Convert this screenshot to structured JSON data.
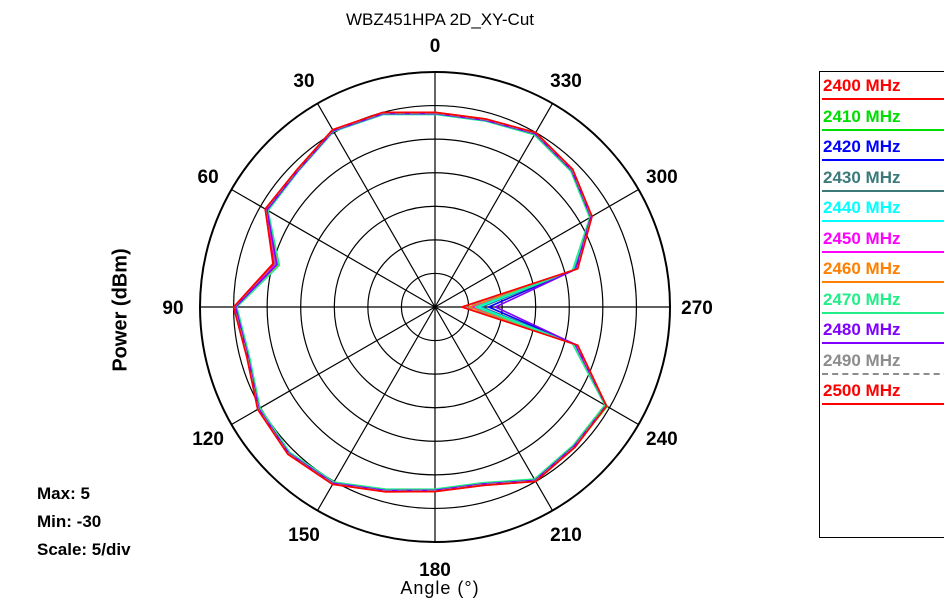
{
  "chart_data": {
    "type": "polar",
    "title": "WBZ451HPA 2D_XY-Cut",
    "xlabel": "Angle (°)",
    "ylabel": "Power  (dBm)",
    "r_range": [
      -30,
      5
    ],
    "angle_ticks": [
      "0",
      "30",
      "60",
      "90",
      "120",
      "150",
      "180",
      "210",
      "240",
      "270",
      "300",
      "330"
    ],
    "angle_direction": "counterclockwise",
    "angles": [
      0,
      15,
      30,
      45,
      60,
      75,
      90,
      105,
      120,
      135,
      150,
      165,
      180,
      195,
      210,
      225,
      240,
      255,
      270,
      285,
      300,
      315,
      330,
      345
    ],
    "series": [
      {
        "name": "2400 MHz",
        "color": "#ff0000",
        "values": [
          -1,
          0,
          0.5,
          -1,
          -0.8,
          -5,
          0,
          -1,
          0.5,
          1,
          0.5,
          -1.5,
          -2.5,
          -2.5,
          0,
          -0.5,
          -0.5,
          -8,
          -26,
          -8,
          -3,
          -1,
          0,
          -1
        ]
      },
      {
        "name": "2410 MHz",
        "color": "#00dd00",
        "values": [
          -1.2,
          -0.2,
          0.3,
          -1.2,
          -1.2,
          -5.8,
          -0.4,
          -1.2,
          0.3,
          0.8,
          0.3,
          -1.6,
          -2.6,
          -2.6,
          -0.2,
          -0.6,
          -0.4,
          -8.5,
          -24,
          -8.5,
          -3.2,
          -1.2,
          -0.2,
          -1.2
        ]
      },
      {
        "name": "2420 MHz",
        "color": "#0000ff",
        "values": [
          -1.1,
          -0.1,
          0.4,
          -1.1,
          -1,
          -5.4,
          -0.2,
          -1.1,
          0.4,
          0.9,
          0.4,
          -1.6,
          -2.6,
          -2.6,
          -0.1,
          -0.7,
          -0.6,
          -8.2,
          -22,
          -8.6,
          -3.1,
          -1.1,
          -0.1,
          -1.1
        ]
      },
      {
        "name": "2430 MHz",
        "color": "#3c7a7a",
        "values": [
          -1.1,
          -0.1,
          0.4,
          -1.1,
          -1.1,
          -5.6,
          -0.3,
          -1.2,
          0.3,
          0.9,
          0.4,
          -1.6,
          -2.6,
          -2.6,
          -0.2,
          -0.6,
          -0.5,
          -8.3,
          -23,
          -8.4,
          -3.1,
          -1.1,
          -0.1,
          -1.1
        ]
      },
      {
        "name": "2440 MHz",
        "color": "#00ffff",
        "values": [
          -1.3,
          -0.3,
          0.2,
          -1.3,
          -1.2,
          -5.5,
          -0.3,
          -1.3,
          0.2,
          0.7,
          0.2,
          -1.8,
          -2.8,
          -2.8,
          -0.3,
          -0.8,
          -0.7,
          -8.6,
          -23.5,
          -8.7,
          -3.3,
          -1.3,
          -0.3,
          -1.3
        ]
      },
      {
        "name": "2450 MHz",
        "color": "#ff00ff",
        "values": [
          -1.2,
          -0.2,
          0.3,
          -1.2,
          -1,
          -5.3,
          -0.2,
          -1.1,
          0.4,
          0.8,
          0.3,
          -1.7,
          -2.7,
          -2.7,
          -0.2,
          -0.8,
          -0.7,
          -8.4,
          -24.5,
          -8.2,
          -3.2,
          -1.2,
          -0.2,
          -1.2
        ]
      },
      {
        "name": "2460 MHz",
        "color": "#ff8000",
        "values": [
          -1.2,
          -0.2,
          0.3,
          -1.2,
          -1.1,
          -5.7,
          -0.3,
          -1.2,
          0.3,
          0.8,
          0.3,
          -1.7,
          -2.7,
          -2.7,
          -0.2,
          -0.7,
          -0.5,
          -8.3,
          -25,
          -8.3,
          -3.2,
          -1.2,
          -0.2,
          -1.2
        ]
      },
      {
        "name": "2470 MHz",
        "color": "#22ee88",
        "values": [
          -1.3,
          -0.3,
          0.2,
          -1.3,
          -1.3,
          -6,
          -0.5,
          -1.4,
          0.1,
          0.6,
          0.1,
          -1.9,
          -2.9,
          -2.9,
          -0.4,
          -0.9,
          -0.8,
          -8.8,
          -24,
          -8.8,
          -3.4,
          -1.4,
          -0.4,
          -1.3
        ]
      },
      {
        "name": "2480 MHz",
        "color": "#8000ff",
        "values": [
          -1.2,
          -0.2,
          0.3,
          -1.2,
          -1.1,
          -5.6,
          -0.3,
          -1.2,
          0.3,
          0.8,
          0.3,
          -1.7,
          -2.7,
          -2.7,
          -0.2,
          -0.7,
          -0.6,
          -8.3,
          -21,
          -8.3,
          -3.2,
          -1.2,
          -0.2,
          -1.2
        ]
      },
      {
        "name": "2490 MHz",
        "color": "#8c8c8c",
        "dashed": true,
        "values": [
          -1.1,
          -0.1,
          0.4,
          -1.1,
          -0.9,
          -5.2,
          -0.1,
          -1.1,
          0.4,
          0.9,
          0.4,
          -1.6,
          -2.6,
          -2.6,
          -0.1,
          -0.6,
          -0.6,
          -8.1,
          -25.5,
          -8.1,
          -3.1,
          -1.1,
          -0.1,
          -1.1
        ]
      },
      {
        "name": "2500 MHz",
        "color": "#ff0000",
        "values": [
          -1,
          0,
          0.5,
          -1,
          -0.8,
          -5.1,
          0,
          -1,
          0.5,
          1,
          0.5,
          -1.5,
          -2.5,
          -2.5,
          0,
          -0.5,
          -0.5,
          -8,
          -26,
          -8,
          -3,
          -1,
          0,
          -1
        ]
      }
    ]
  },
  "stats": {
    "max": "Max: 5",
    "min": "Min: -30",
    "scale": "Scale: 5/div"
  }
}
